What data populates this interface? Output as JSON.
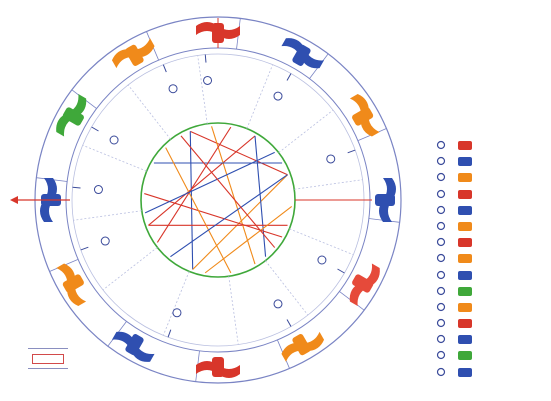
{
  "header": {
    "title": ""
  },
  "info_panel": {
    "lines": [
      {
        "label": "",
        "value": ""
      },
      {
        "label": "",
        "value": ""
      },
      {
        "label": "",
        "value": ""
      },
      {
        "label": "",
        "value": ""
      },
      {
        "label": "",
        "value": ""
      },
      {
        "label": "",
        "value": ""
      },
      {
        "label": "",
        "value": ""
      }
    ]
  },
  "wheel": {
    "sign_colors": [
      "#d8362a",
      "#2f4fb0",
      "#f08a1a",
      "#2f4fb0",
      "#e64a3a",
      "#f08a1a",
      "#d8362a",
      "#2f4fb0",
      "#f08a1a",
      "#2f4fb0",
      "#3fa83a",
      "#f08a1a"
    ],
    "inner_circle_color": "#3fa83a",
    "aspect_colors": [
      "#d8362a",
      "#2f4fb0",
      "#f08a1a"
    ]
  },
  "planet_table": {
    "rows": [
      {
        "planet_icon": "sun-glyph-icon",
        "color": "#d8362a",
        "c1": "",
        "c2": "",
        "c3": ""
      },
      {
        "planet_icon": "moon-glyph-icon",
        "color": "#2f4fb0",
        "c1": "",
        "c2": "",
        "c3": ""
      },
      {
        "planet_icon": "mercury-glyph-icon",
        "color": "#f08a1a",
        "c1": "",
        "c2": "",
        "c3": ""
      },
      {
        "planet_icon": "venus-glyph-icon",
        "color": "#d8362a",
        "c1": "",
        "c2": "",
        "c3": ""
      },
      {
        "planet_icon": "mars-glyph-icon",
        "color": "#2f4fb0",
        "c1": "",
        "c2": "",
        "c3": ""
      },
      {
        "planet_icon": "jupiter-glyph-icon",
        "color": "#f08a1a",
        "c1": "",
        "c2": "",
        "c3": ""
      },
      {
        "planet_icon": "saturn-glyph-icon",
        "color": "#d8362a",
        "c1": "",
        "c2": "",
        "c3": ""
      },
      {
        "planet_icon": "uranus-glyph-icon",
        "color": "#f08a1a",
        "c1": "",
        "c2": "",
        "c3": ""
      },
      {
        "planet_icon": "neptune-glyph-icon",
        "color": "#2f4fb0",
        "c1": "",
        "c2": "",
        "c3": ""
      },
      {
        "planet_icon": "pluto-glyph-icon",
        "color": "#3fa83a",
        "c1": "",
        "c2": "",
        "c3": ""
      },
      {
        "planet_icon": "node-glyph-icon",
        "color": "#f08a1a",
        "c1": "",
        "c2": "",
        "c3": ""
      },
      {
        "planet_icon": "lilith-glyph-icon",
        "color": "#d8362a",
        "c1": "",
        "c2": "",
        "c3": ""
      },
      {
        "planet_icon": "chiron-glyph-icon",
        "color": "#2f4fb0",
        "c1": "",
        "c2": "",
        "c3": ""
      },
      {
        "planet_icon": "ascendant-glyph-icon",
        "color": "#3fa83a",
        "c1": "",
        "c2": "",
        "c3": ""
      },
      {
        "planet_icon": "mc-glyph-icon",
        "color": "#2f4fb0",
        "c1": "",
        "c2": "",
        "c3": ""
      }
    ]
  },
  "footer": {
    "left_text": "",
    "credit": ""
  }
}
